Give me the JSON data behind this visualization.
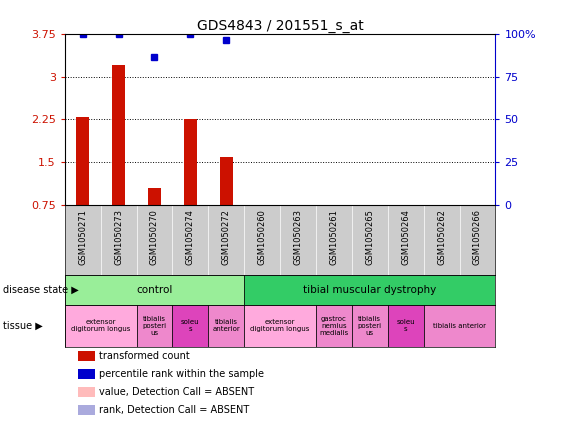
{
  "title": "GDS4843 / 201551_s_at",
  "samples": [
    "GSM1050271",
    "GSM1050273",
    "GSM1050270",
    "GSM1050274",
    "GSM1050272",
    "GSM1050260",
    "GSM1050263",
    "GSM1050261",
    "GSM1050265",
    "GSM1050264",
    "GSM1050262",
    "GSM1050266"
  ],
  "bar_values": [
    2.3,
    3.2,
    1.05,
    2.25,
    1.6,
    null,
    null,
    null,
    null,
    null,
    null,
    null
  ],
  "dot_values": [
    3.75,
    3.75,
    3.35,
    3.75,
    3.65,
    null,
    null,
    null,
    null,
    null,
    null,
    null
  ],
  "ylim": [
    0.75,
    3.75
  ],
  "yticks_left": [
    0.75,
    1.5,
    2.25,
    3.0,
    3.75
  ],
  "yticks_right": [
    0,
    25,
    50,
    75,
    100
  ],
  "ytick_labels_left": [
    "0.75",
    "1.5",
    "2.25",
    "3",
    "3.75"
  ],
  "ytick_labels_right": [
    "0",
    "25",
    "50",
    "75",
    "100%"
  ],
  "bar_color": "#cc1100",
  "dot_color": "#0000cc",
  "disease_state_colors": {
    "control": "#99ee99",
    "tibial muscular dystrophy": "#33cc66"
  },
  "disease_state": [
    {
      "label": "control",
      "start": 0,
      "end": 5
    },
    {
      "label": "tibial muscular dystrophy",
      "start": 5,
      "end": 12
    }
  ],
  "tissue_groups": [
    {
      "label": "extensor\ndigitorum longus",
      "start": 0,
      "end": 2,
      "color": "#ffaadd"
    },
    {
      "label": "tibialis\nposteri\nus",
      "start": 2,
      "end": 3,
      "color": "#ee88cc"
    },
    {
      "label": "soleu\ns",
      "start": 3,
      "end": 4,
      "color": "#dd44bb"
    },
    {
      "label": "tibialis\nanterior",
      "start": 4,
      "end": 5,
      "color": "#ee88cc"
    },
    {
      "label": "extensor\ndigitorum longus",
      "start": 5,
      "end": 7,
      "color": "#ffaadd"
    },
    {
      "label": "gastroc\nnemius\nmedialis",
      "start": 7,
      "end": 8,
      "color": "#ee88cc"
    },
    {
      "label": "tibialis\nposteri\nus",
      "start": 8,
      "end": 9,
      "color": "#ee88cc"
    },
    {
      "label": "soleu\ns",
      "start": 9,
      "end": 10,
      "color": "#dd44bb"
    },
    {
      "label": "tibialis anterior",
      "start": 10,
      "end": 12,
      "color": "#ee88cc"
    }
  ],
  "legend_items": [
    {
      "label": "transformed count",
      "color": "#cc1100"
    },
    {
      "label": "percentile rank within the sample",
      "color": "#0000cc"
    },
    {
      "label": "value, Detection Call = ABSENT",
      "color": "#ffbbbb"
    },
    {
      "label": "rank, Detection Call = ABSENT",
      "color": "#aaaadd"
    }
  ],
  "left_axis_color": "#cc1100",
  "right_axis_color": "#0000cc",
  "xtick_bg_color": "#cccccc"
}
